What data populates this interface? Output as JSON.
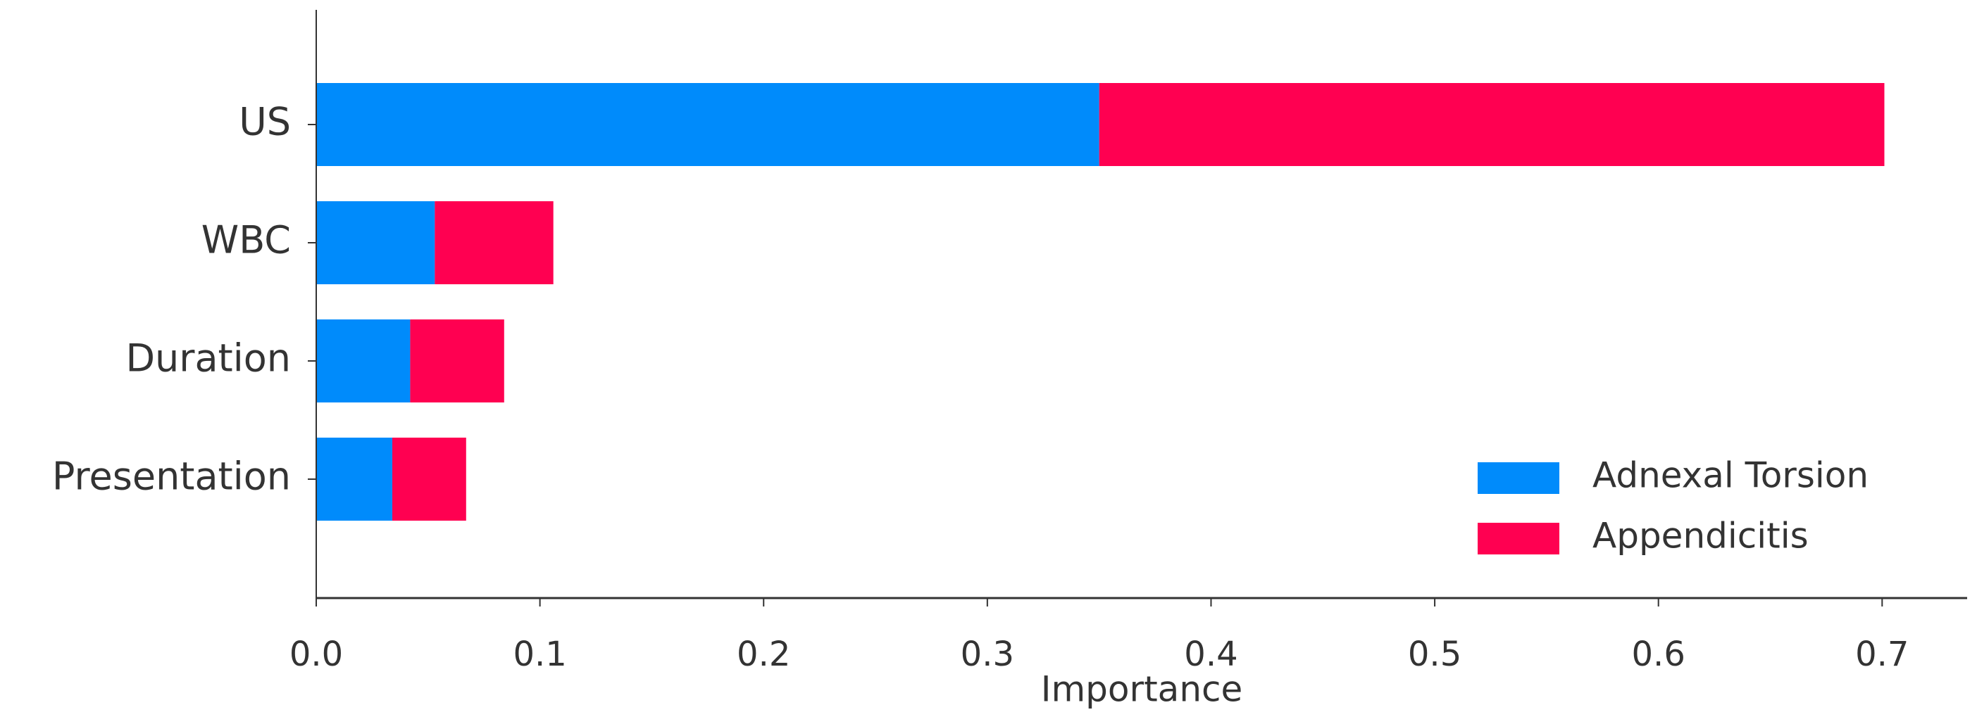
{
  "chart_data": {
    "type": "barh_stacked",
    "categories": [
      "US",
      "WBC",
      "Duration",
      "Presentation"
    ],
    "series": [
      {
        "name": "Adnexal Torsion",
        "color": "#008bfb",
        "values": [
          0.35,
          0.053,
          0.042,
          0.034
        ]
      },
      {
        "name": "Appendicitis",
        "color": "#ff0051",
        "values": [
          0.351,
          0.053,
          0.042,
          0.033
        ]
      }
    ],
    "xlabel": "Importance",
    "xlim": [
      0,
      0.738
    ],
    "xticks": [
      {
        "value": 0,
        "label": "0.0"
      },
      0.1,
      0.2,
      0.3,
      0.4,
      0.5,
      0.6,
      0.7
    ],
    "legend": "lower right",
    "grid": false
  }
}
